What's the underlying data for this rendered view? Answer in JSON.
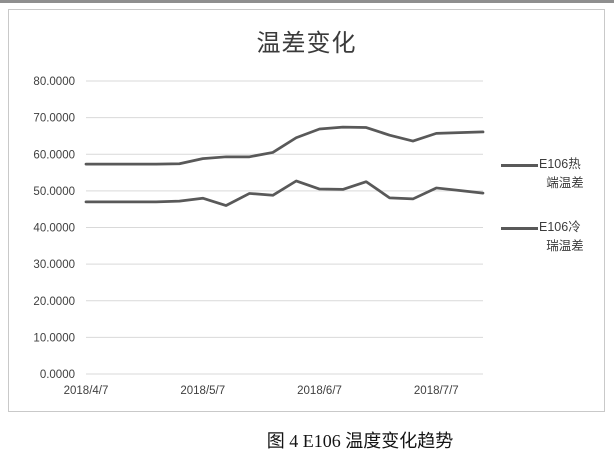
{
  "figure": {
    "caption": "图 4  E106 温度变化趋势"
  },
  "chart_data": {
    "type": "line",
    "title": "温差变化",
    "xlabel": "",
    "ylabel": "",
    "ylim": [
      0,
      80
    ],
    "y_tick_step": 10,
    "y_tick_decimals": 4,
    "grid": true,
    "legend_position": "right",
    "x_tick_labels": [
      "2018/4/7",
      "2018/5/7",
      "2018/6/7",
      "2018/7/7"
    ],
    "x_tick_indices": [
      0,
      5,
      10,
      15
    ],
    "series": [
      {
        "name": "E106热端温差",
        "legend_lines": [
          "E106热",
          "端温差"
        ],
        "values": [
          57.3,
          57.3,
          57.3,
          57.3,
          57.4,
          58.8,
          59.3,
          59.3,
          60.5,
          64.5,
          66.9,
          67.4,
          67.3,
          65.2,
          63.6,
          65.7,
          65.9,
          66.1
        ]
      },
      {
        "name": "E106冷瑞温差",
        "legend_lines": [
          "E106冷",
          "瑞温差"
        ],
        "values": [
          47.0,
          47.0,
          47.0,
          47.0,
          47.2,
          48.0,
          46.0,
          49.3,
          48.8,
          52.7,
          50.5,
          50.4,
          52.5,
          48.1,
          47.8,
          50.8,
          50.1,
          49.4
        ]
      }
    ],
    "colors": {
      "line": "#595959",
      "gridline": "#d9d9d9",
      "axis_text": "#404040",
      "title_text": "#3b3b3b",
      "frame_border": "#c9c9c9"
    }
  }
}
